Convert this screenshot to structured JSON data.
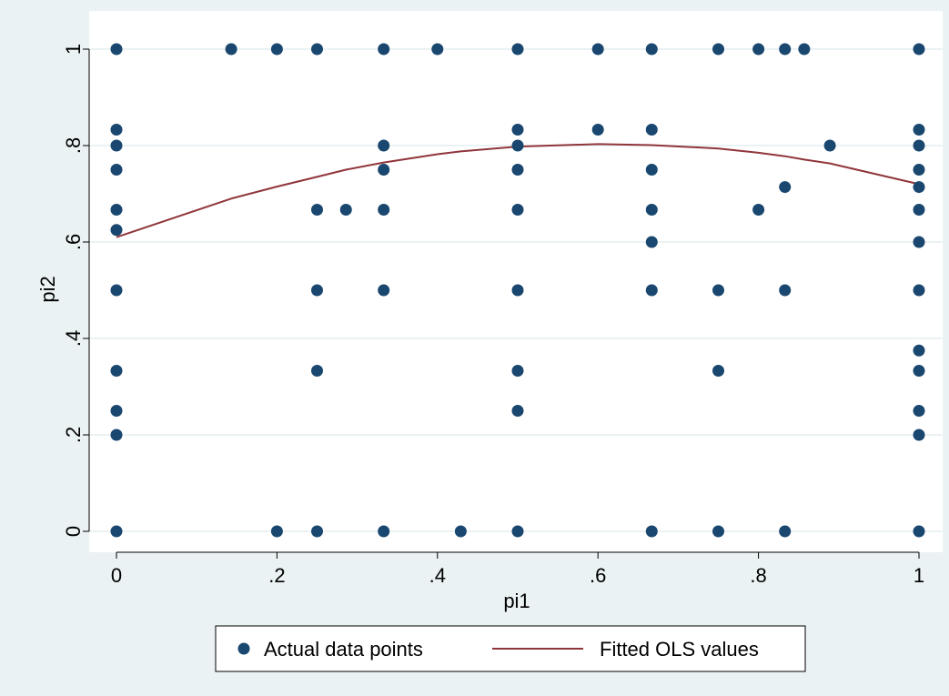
{
  "chart_data": {
    "type": "scatter",
    "title": "",
    "xlabel": "pi1",
    "ylabel": "pi2",
    "xlim": [
      0,
      1
    ],
    "ylim": [
      0,
      1
    ],
    "grid": "horizontal",
    "legend_position": "bottom",
    "x_ticks": [
      {
        "value": 0,
        "label": "0"
      },
      {
        "value": 0.2,
        "label": ".2"
      },
      {
        "value": 0.4,
        "label": ".4"
      },
      {
        "value": 0.6,
        "label": ".6"
      },
      {
        "value": 0.8,
        "label": ".8"
      },
      {
        "value": 1,
        "label": "1"
      }
    ],
    "y_ticks": [
      {
        "value": 0,
        "label": "0"
      },
      {
        "value": 0.2,
        "label": ".2"
      },
      {
        "value": 0.4,
        "label": ".4"
      },
      {
        "value": 0.6,
        "label": ".6"
      },
      {
        "value": 0.8,
        "label": ".8"
      },
      {
        "value": 1,
        "label": "1"
      }
    ],
    "colors": {
      "background": "#eaf2f3",
      "plot_background": "#ffffff",
      "grid": "#eaf2f3",
      "points": "#1a476f",
      "fitted_line": "#90353b"
    },
    "series": [
      {
        "name": "Actual data points",
        "kind": "scatter",
        "points": [
          [
            0,
            1
          ],
          [
            0.143,
            1
          ],
          [
            0.2,
            1
          ],
          [
            0.25,
            1
          ],
          [
            0.333,
            1
          ],
          [
            0.4,
            1
          ],
          [
            0.5,
            1
          ],
          [
            0.6,
            1
          ],
          [
            0.667,
            1
          ],
          [
            0.75,
            1
          ],
          [
            0.8,
            1
          ],
          [
            0.833,
            1
          ],
          [
            0.857,
            1
          ],
          [
            1,
            1
          ],
          [
            0,
            0.833
          ],
          [
            0.5,
            0.833
          ],
          [
            0.6,
            0.833
          ],
          [
            0.667,
            0.833
          ],
          [
            1,
            0.833
          ],
          [
            0,
            0.8
          ],
          [
            0.333,
            0.8
          ],
          [
            0.5,
            0.8
          ],
          [
            0.889,
            0.8
          ],
          [
            1,
            0.8
          ],
          [
            0,
            0.75
          ],
          [
            0.333,
            0.75
          ],
          [
            0.5,
            0.75
          ],
          [
            0.667,
            0.75
          ],
          [
            1,
            0.75
          ],
          [
            0.833,
            0.714
          ],
          [
            1,
            0.714
          ],
          [
            0,
            0.667
          ],
          [
            0.25,
            0.667
          ],
          [
            0.286,
            0.667
          ],
          [
            0.333,
            0.667
          ],
          [
            0.5,
            0.667
          ],
          [
            0.667,
            0.667
          ],
          [
            0.8,
            0.667
          ],
          [
            1,
            0.667
          ],
          [
            0,
            0.625
          ],
          [
            0.667,
            0.6
          ],
          [
            1,
            0.6
          ],
          [
            0,
            0.5
          ],
          [
            0.25,
            0.5
          ],
          [
            0.333,
            0.5
          ],
          [
            0.5,
            0.5
          ],
          [
            0.667,
            0.5
          ],
          [
            0.75,
            0.5
          ],
          [
            0.833,
            0.5
          ],
          [
            1,
            0.5
          ],
          [
            1,
            0.375
          ],
          [
            0,
            0.333
          ],
          [
            0.25,
            0.333
          ],
          [
            0.5,
            0.333
          ],
          [
            0.75,
            0.333
          ],
          [
            1,
            0.333
          ],
          [
            0,
            0.25
          ],
          [
            0.5,
            0.25
          ],
          [
            1,
            0.25
          ],
          [
            0,
            0.2
          ],
          [
            1,
            0.2
          ],
          [
            0,
            0
          ],
          [
            0.2,
            0
          ],
          [
            0.25,
            0
          ],
          [
            0.333,
            0
          ],
          [
            0.429,
            0
          ],
          [
            0.5,
            0
          ],
          [
            0.667,
            0
          ],
          [
            0.75,
            0
          ],
          [
            0.833,
            0
          ],
          [
            1,
            0
          ]
        ]
      },
      {
        "name": "Fitted OLS values",
        "kind": "line",
        "points": [
          [
            0,
            0.61
          ],
          [
            0.143,
            0.69
          ],
          [
            0.2,
            0.715
          ],
          [
            0.25,
            0.735
          ],
          [
            0.286,
            0.75
          ],
          [
            0.333,
            0.765
          ],
          [
            0.4,
            0.782
          ],
          [
            0.429,
            0.788
          ],
          [
            0.5,
            0.798
          ],
          [
            0.6,
            0.803
          ],
          [
            0.667,
            0.801
          ],
          [
            0.75,
            0.794
          ],
          [
            0.8,
            0.785
          ],
          [
            0.833,
            0.778
          ],
          [
            0.857,
            0.771
          ],
          [
            0.889,
            0.763
          ],
          [
            1,
            0.72
          ]
        ]
      }
    ]
  }
}
